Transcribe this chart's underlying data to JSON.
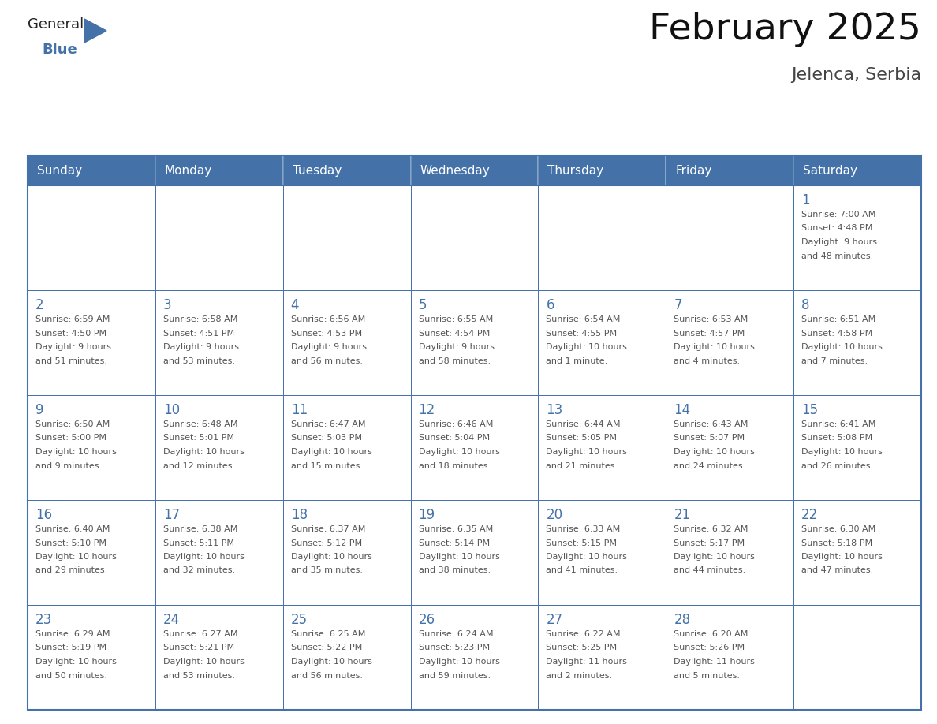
{
  "title": "February 2025",
  "subtitle": "Jelenca, Serbia",
  "header_color": "#4472a8",
  "header_text_color": "#ffffff",
  "border_color": "#4472a8",
  "day_number_color": "#4472a8",
  "text_color": "#555555",
  "days_of_week": [
    "Sunday",
    "Monday",
    "Tuesday",
    "Wednesday",
    "Thursday",
    "Friday",
    "Saturday"
  ],
  "weeks": [
    [
      {
        "day": "",
        "info": ""
      },
      {
        "day": "",
        "info": ""
      },
      {
        "day": "",
        "info": ""
      },
      {
        "day": "",
        "info": ""
      },
      {
        "day": "",
        "info": ""
      },
      {
        "day": "",
        "info": ""
      },
      {
        "day": "1",
        "info": "Sunrise: 7:00 AM\nSunset: 4:48 PM\nDaylight: 9 hours\nand 48 minutes."
      }
    ],
    [
      {
        "day": "2",
        "info": "Sunrise: 6:59 AM\nSunset: 4:50 PM\nDaylight: 9 hours\nand 51 minutes."
      },
      {
        "day": "3",
        "info": "Sunrise: 6:58 AM\nSunset: 4:51 PM\nDaylight: 9 hours\nand 53 minutes."
      },
      {
        "day": "4",
        "info": "Sunrise: 6:56 AM\nSunset: 4:53 PM\nDaylight: 9 hours\nand 56 minutes."
      },
      {
        "day": "5",
        "info": "Sunrise: 6:55 AM\nSunset: 4:54 PM\nDaylight: 9 hours\nand 58 minutes."
      },
      {
        "day": "6",
        "info": "Sunrise: 6:54 AM\nSunset: 4:55 PM\nDaylight: 10 hours\nand 1 minute."
      },
      {
        "day": "7",
        "info": "Sunrise: 6:53 AM\nSunset: 4:57 PM\nDaylight: 10 hours\nand 4 minutes."
      },
      {
        "day": "8",
        "info": "Sunrise: 6:51 AM\nSunset: 4:58 PM\nDaylight: 10 hours\nand 7 minutes."
      }
    ],
    [
      {
        "day": "9",
        "info": "Sunrise: 6:50 AM\nSunset: 5:00 PM\nDaylight: 10 hours\nand 9 minutes."
      },
      {
        "day": "10",
        "info": "Sunrise: 6:48 AM\nSunset: 5:01 PM\nDaylight: 10 hours\nand 12 minutes."
      },
      {
        "day": "11",
        "info": "Sunrise: 6:47 AM\nSunset: 5:03 PM\nDaylight: 10 hours\nand 15 minutes."
      },
      {
        "day": "12",
        "info": "Sunrise: 6:46 AM\nSunset: 5:04 PM\nDaylight: 10 hours\nand 18 minutes."
      },
      {
        "day": "13",
        "info": "Sunrise: 6:44 AM\nSunset: 5:05 PM\nDaylight: 10 hours\nand 21 minutes."
      },
      {
        "day": "14",
        "info": "Sunrise: 6:43 AM\nSunset: 5:07 PM\nDaylight: 10 hours\nand 24 minutes."
      },
      {
        "day": "15",
        "info": "Sunrise: 6:41 AM\nSunset: 5:08 PM\nDaylight: 10 hours\nand 26 minutes."
      }
    ],
    [
      {
        "day": "16",
        "info": "Sunrise: 6:40 AM\nSunset: 5:10 PM\nDaylight: 10 hours\nand 29 minutes."
      },
      {
        "day": "17",
        "info": "Sunrise: 6:38 AM\nSunset: 5:11 PM\nDaylight: 10 hours\nand 32 minutes."
      },
      {
        "day": "18",
        "info": "Sunrise: 6:37 AM\nSunset: 5:12 PM\nDaylight: 10 hours\nand 35 minutes."
      },
      {
        "day": "19",
        "info": "Sunrise: 6:35 AM\nSunset: 5:14 PM\nDaylight: 10 hours\nand 38 minutes."
      },
      {
        "day": "20",
        "info": "Sunrise: 6:33 AM\nSunset: 5:15 PM\nDaylight: 10 hours\nand 41 minutes."
      },
      {
        "day": "21",
        "info": "Sunrise: 6:32 AM\nSunset: 5:17 PM\nDaylight: 10 hours\nand 44 minutes."
      },
      {
        "day": "22",
        "info": "Sunrise: 6:30 AM\nSunset: 5:18 PM\nDaylight: 10 hours\nand 47 minutes."
      }
    ],
    [
      {
        "day": "23",
        "info": "Sunrise: 6:29 AM\nSunset: 5:19 PM\nDaylight: 10 hours\nand 50 minutes."
      },
      {
        "day": "24",
        "info": "Sunrise: 6:27 AM\nSunset: 5:21 PM\nDaylight: 10 hours\nand 53 minutes."
      },
      {
        "day": "25",
        "info": "Sunrise: 6:25 AM\nSunset: 5:22 PM\nDaylight: 10 hours\nand 56 minutes."
      },
      {
        "day": "26",
        "info": "Sunrise: 6:24 AM\nSunset: 5:23 PM\nDaylight: 10 hours\nand 59 minutes."
      },
      {
        "day": "27",
        "info": "Sunrise: 6:22 AM\nSunset: 5:25 PM\nDaylight: 11 hours\nand 2 minutes."
      },
      {
        "day": "28",
        "info": "Sunrise: 6:20 AM\nSunset: 5:26 PM\nDaylight: 11 hours\nand 5 minutes."
      },
      {
        "day": "",
        "info": ""
      }
    ]
  ]
}
